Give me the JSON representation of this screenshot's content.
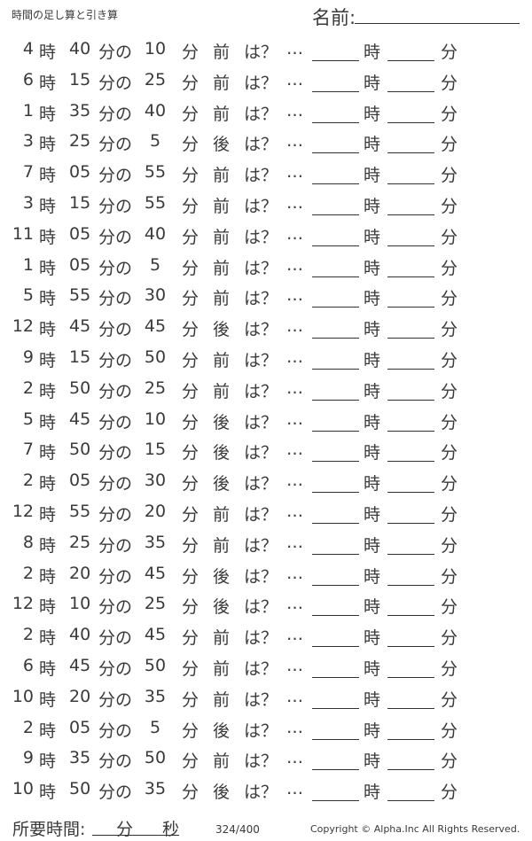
{
  "header": {
    "title": "時間の足し算と引き算",
    "name_label": "名前:"
  },
  "labels": {
    "hour": "時",
    "minute_of": "分の",
    "minute": "分",
    "question": "は？",
    "dots": "…"
  },
  "problems": [
    {
      "hour": "4",
      "minute": "40",
      "delta": "10",
      "direction": "前"
    },
    {
      "hour": "6",
      "minute": "15",
      "delta": "25",
      "direction": "前"
    },
    {
      "hour": "1",
      "minute": "35",
      "delta": "40",
      "direction": "前"
    },
    {
      "hour": "3",
      "minute": "25",
      "delta": "5",
      "direction": "後"
    },
    {
      "hour": "7",
      "minute": "05",
      "delta": "55",
      "direction": "前"
    },
    {
      "hour": "3",
      "minute": "15",
      "delta": "55",
      "direction": "前"
    },
    {
      "hour": "11",
      "minute": "05",
      "delta": "40",
      "direction": "前"
    },
    {
      "hour": "1",
      "minute": "05",
      "delta": "5",
      "direction": "前"
    },
    {
      "hour": "5",
      "minute": "55",
      "delta": "30",
      "direction": "前"
    },
    {
      "hour": "12",
      "minute": "45",
      "delta": "45",
      "direction": "後"
    },
    {
      "hour": "9",
      "minute": "15",
      "delta": "50",
      "direction": "前"
    },
    {
      "hour": "2",
      "minute": "50",
      "delta": "25",
      "direction": "前"
    },
    {
      "hour": "5",
      "minute": "45",
      "delta": "10",
      "direction": "後"
    },
    {
      "hour": "7",
      "minute": "50",
      "delta": "15",
      "direction": "後"
    },
    {
      "hour": "2",
      "minute": "05",
      "delta": "30",
      "direction": "後"
    },
    {
      "hour": "12",
      "minute": "55",
      "delta": "20",
      "direction": "前"
    },
    {
      "hour": "8",
      "minute": "25",
      "delta": "35",
      "direction": "前"
    },
    {
      "hour": "2",
      "minute": "20",
      "delta": "45",
      "direction": "後"
    },
    {
      "hour": "12",
      "minute": "10",
      "delta": "25",
      "direction": "後"
    },
    {
      "hour": "2",
      "minute": "40",
      "delta": "45",
      "direction": "前"
    },
    {
      "hour": "6",
      "minute": "45",
      "delta": "50",
      "direction": "前"
    },
    {
      "hour": "10",
      "minute": "20",
      "delta": "35",
      "direction": "前"
    },
    {
      "hour": "2",
      "minute": "05",
      "delta": "5",
      "direction": "後"
    },
    {
      "hour": "9",
      "minute": "35",
      "delta": "50",
      "direction": "前"
    },
    {
      "hour": "10",
      "minute": "50",
      "delta": "35",
      "direction": "後"
    }
  ],
  "footer": {
    "time_label": "所要時間:",
    "min": "分",
    "sec": "秒",
    "page": "324/400",
    "copyright": "Copyright ©  Alpha.Inc All Rights Reserved."
  }
}
